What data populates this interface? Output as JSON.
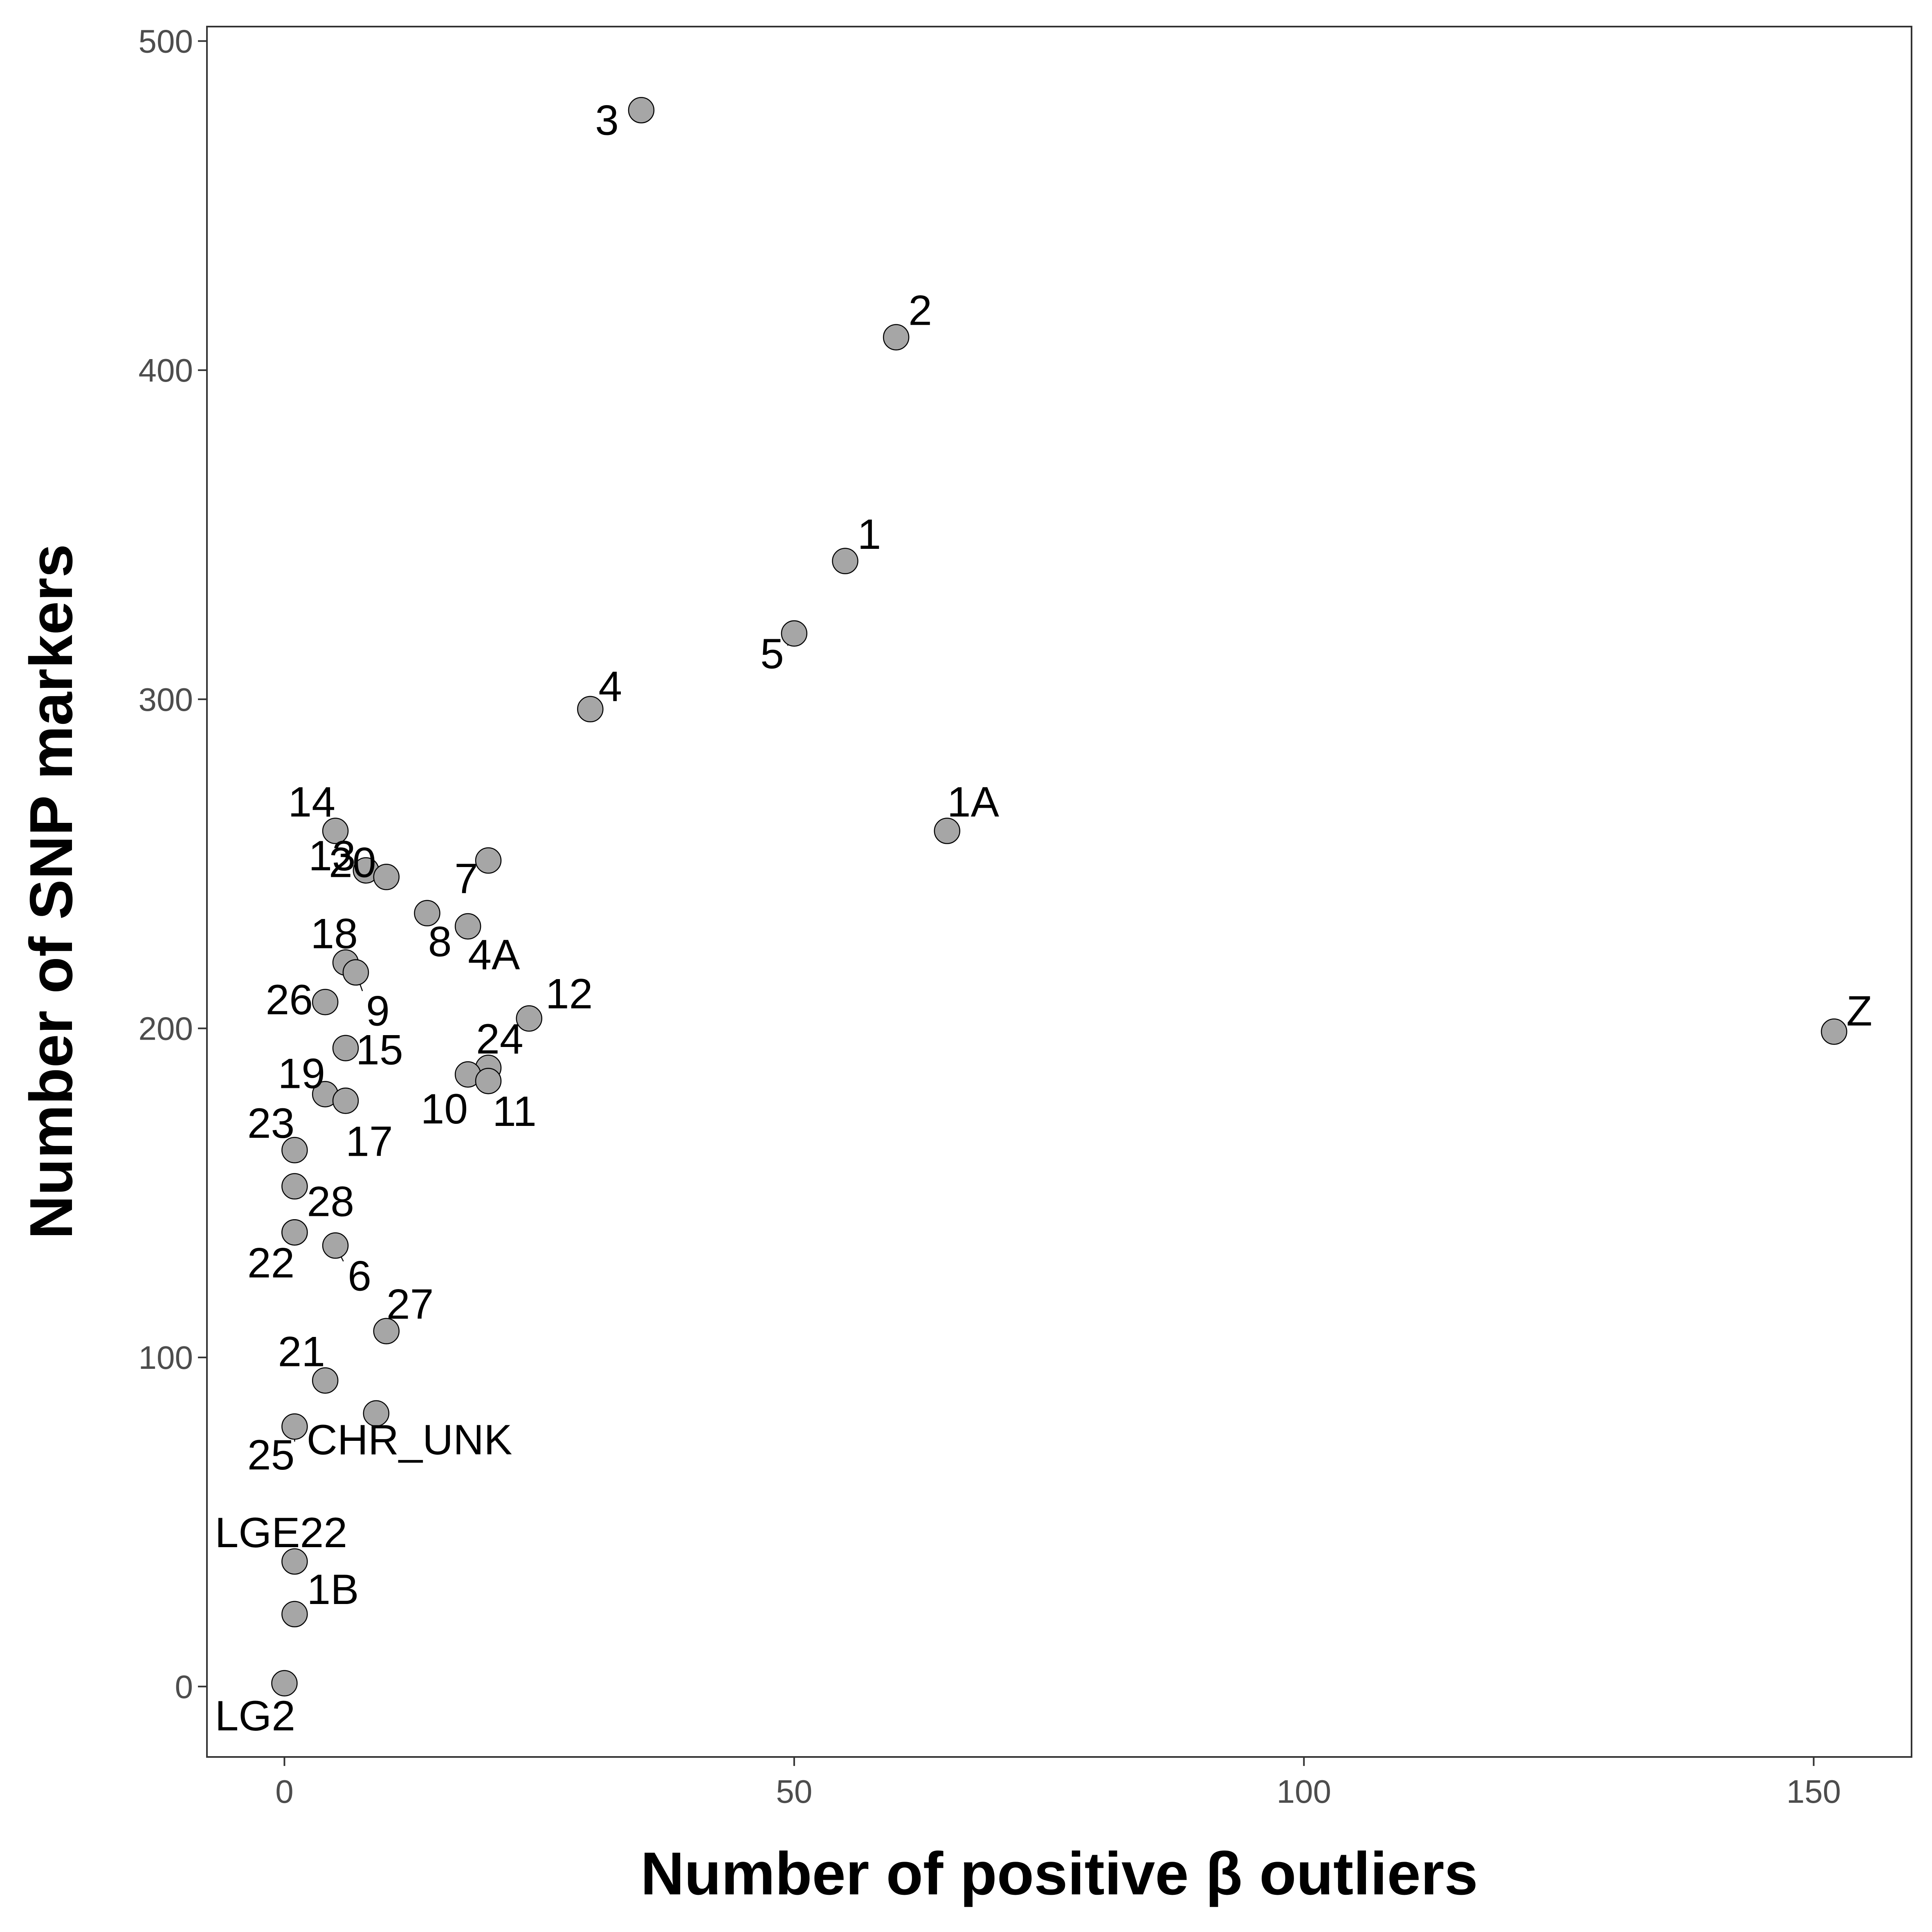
{
  "chart_data": {
    "type": "scatter",
    "title": "",
    "xlabel": "Number of positive β outliers",
    "ylabel": "Number of SNP markers",
    "xlim": [
      -7.6,
      159.6
    ],
    "ylim": [
      -21.4,
      504.4
    ],
    "xticks": [
      0,
      50,
      100,
      150
    ],
    "yticks": [
      0,
      100,
      200,
      300,
      400,
      500
    ],
    "grid": false,
    "legend": "none",
    "colors": {
      "point_fill": "#a6a6a6",
      "point_stroke": "#000000",
      "text": "#000000",
      "tick_text": "#4d4d4d",
      "axis": "#333333"
    },
    "points": [
      {
        "label": "3",
        "x": 35,
        "y": 479
      },
      {
        "label": "2",
        "x": 60,
        "y": 410
      },
      {
        "label": "1",
        "x": 55,
        "y": 342
      },
      {
        "label": "5",
        "x": 50,
        "y": 320
      },
      {
        "label": "4",
        "x": 30,
        "y": 297
      },
      {
        "label": "1A",
        "x": 65,
        "y": 260
      },
      {
        "label": "14",
        "x": 5,
        "y": 260
      },
      {
        "label": "7",
        "x": 20,
        "y": 251
      },
      {
        "label": "13",
        "x": 8,
        "y": 248
      },
      {
        "label": "20",
        "x": 10,
        "y": 246
      },
      {
        "label": "8",
        "x": 14,
        "y": 235
      },
      {
        "label": "4A",
        "x": 18,
        "y": 231
      },
      {
        "label": "18",
        "x": 6,
        "y": 220
      },
      {
        "label": "9",
        "x": 7,
        "y": 217
      },
      {
        "label": "26",
        "x": 4,
        "y": 208
      },
      {
        "label": "12",
        "x": 24,
        "y": 203
      },
      {
        "label": "Z",
        "x": 152,
        "y": 199
      },
      {
        "label": "15",
        "x": 6,
        "y": 194
      },
      {
        "label": "24",
        "x": 20,
        "y": 188
      },
      {
        "label": "10",
        "x": 18,
        "y": 186
      },
      {
        "label": "11",
        "x": 20,
        "y": 184
      },
      {
        "label": "19",
        "x": 4,
        "y": 180
      },
      {
        "label": "17",
        "x": 6,
        "y": 178
      },
      {
        "label": "23",
        "x": 1,
        "y": 163
      },
      {
        "label": "",
        "x": 1,
        "y": 152
      },
      {
        "label": "28",
        "x": 1,
        "y": 138
      },
      {
        "label": "6",
        "x": 5,
        "y": 134
      },
      {
        "label": "22",
        "x": 1,
        "y": 138
      },
      {
        "label": "27",
        "x": 10,
        "y": 108
      },
      {
        "label": "21",
        "x": 4,
        "y": 93
      },
      {
        "label": "CHR_UNK",
        "x": 9,
        "y": 83
      },
      {
        "label": "25",
        "x": 1,
        "y": 79
      },
      {
        "label": "LGE22",
        "x": 1,
        "y": 38
      },
      {
        "label": "1B",
        "x": 1,
        "y": 22
      },
      {
        "label": "LG2",
        "x": 0,
        "y": 1
      }
    ]
  }
}
